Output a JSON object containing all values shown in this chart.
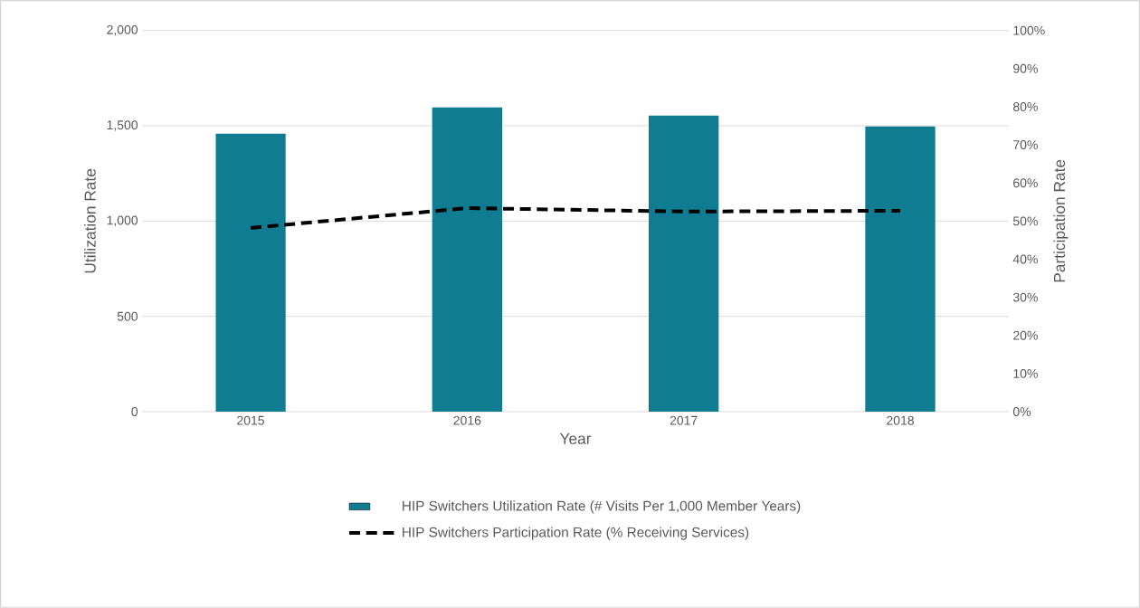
{
  "chart_data": {
    "type": "bar",
    "xlabel": "Year",
    "ylabel": "Utilization Rate",
    "y2label": "Participation Rate",
    "categories": [
      "2015",
      "2016",
      "2017",
      "2018"
    ],
    "series": [
      {
        "name": "HIP Switchers Utilization Rate (# Visits Per 1,000 Member Years)",
        "color": "#107c91",
        "values": [
          1458,
          1596,
          1553,
          1496
        ]
      },
      {
        "name": "HIP Switchers Participation Rate (% Receiving Services)",
        "type": "line",
        "axis": "y2",
        "color": "#000000",
        "line_style": "dashed",
        "marker": "none",
        "values": [
          48.2,
          53.4,
          52.5,
          52.7
        ]
      }
    ],
    "ylim": [
      0,
      2000
    ],
    "yticks": [
      0,
      500,
      {
        "value": 1000,
        "label": "1,000"
      },
      {
        "value": 1500,
        "label": "1,500"
      },
      {
        "value": 2000,
        "label": "2,000"
      }
    ],
    "y2lim": [
      0,
      100
    ],
    "y2ticks": [
      {
        "value": 0,
        "label": "0%"
      },
      {
        "value": 10,
        "label": "10%"
      },
      {
        "value": 20,
        "label": "20%"
      },
      {
        "value": 30,
        "label": "30%"
      },
      {
        "value": 40,
        "label": "40%"
      },
      {
        "value": 50,
        "label": "50%"
      },
      {
        "value": 60,
        "label": "60%"
      },
      {
        "value": 70,
        "label": "70%"
      },
      {
        "value": 80,
        "label": "80%"
      },
      {
        "value": 90,
        "label": "90%"
      },
      {
        "value": 100,
        "label": "100%"
      }
    ],
    "grid": "y",
    "legend": "bottom"
  }
}
